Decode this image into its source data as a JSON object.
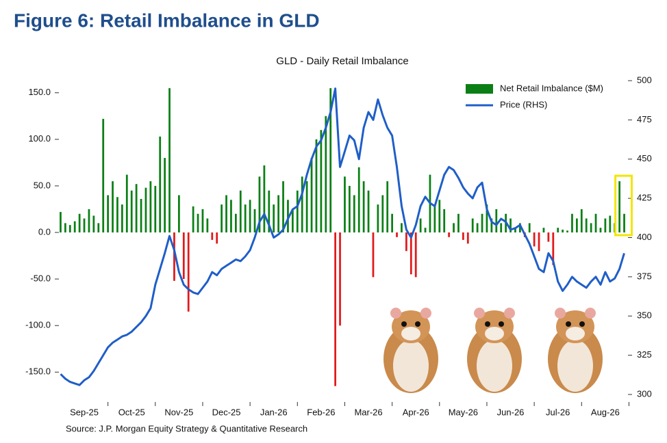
{
  "title": "Figure 6: Retail Imbalance in GLD",
  "source": "Source: J.P. Morgan Equity Strategy & Quantitative Research",
  "chart_data": {
    "type": "bar_line",
    "title": "GLD - Daily Retail Imbalance",
    "xlim": [
      -0.5,
      119.5
    ],
    "xticks": [
      {
        "value": 5,
        "label": "Sep-25"
      },
      {
        "value": 15,
        "label": "Oct-25"
      },
      {
        "value": 25,
        "label": "Nov-25"
      },
      {
        "value": 35,
        "label": "Dec-25"
      },
      {
        "value": 45,
        "label": "Jan-26"
      },
      {
        "value": 55,
        "label": "Feb-26"
      },
      {
        "value": 65,
        "label": "Mar-26"
      },
      {
        "value": 75,
        "label": "Apr-26"
      },
      {
        "value": 85,
        "label": "May-26"
      },
      {
        "value": 95,
        "label": "Jun-26"
      },
      {
        "value": 105,
        "label": "Jul-26"
      },
      {
        "value": 115,
        "label": "Aug-26"
      }
    ],
    "ylim": [
      -174,
      163
    ],
    "yticks": [
      {
        "value": 150,
        "label": "150.0"
      },
      {
        "value": 100,
        "label": "100.0"
      },
      {
        "value": 50,
        "label": "50.0"
      },
      {
        "value": 0,
        "label": "0.0"
      },
      {
        "value": -50,
        "label": "-50.0"
      },
      {
        "value": -100,
        "label": "-100.0"
      },
      {
        "value": -150,
        "label": "-150.0"
      }
    ],
    "y2lim": [
      300,
      500
    ],
    "y2ticks": [
      300,
      325,
      350,
      375,
      400,
      425,
      450,
      475,
      500
    ],
    "highlight_color": "#f2e600",
    "series": [
      {
        "name": "Net Retail Imbalance ($M)",
        "type": "bar",
        "color": "#0b7f16",
        "negative_color": "#e2191b",
        "values": [
          22,
          10,
          8,
          12,
          20,
          15,
          25,
          18,
          10,
          122,
          40,
          55,
          38,
          30,
          62,
          45,
          52,
          36,
          48,
          55,
          50,
          103,
          80,
          155,
          -52,
          40,
          -50,
          -85,
          28,
          20,
          25,
          15,
          -8,
          -12,
          30,
          40,
          35,
          20,
          45,
          30,
          35,
          25,
          60,
          72,
          45,
          30,
          40,
          55,
          35,
          25,
          45,
          60,
          55,
          80,
          100,
          110,
          125,
          155,
          -165,
          -100,
          60,
          50,
          40,
          70,
          55,
          45,
          -48,
          30,
          40,
          55,
          20,
          -5,
          10,
          -20,
          -45,
          -48,
          15,
          5,
          62,
          30,
          35,
          25,
          -5,
          10,
          20,
          -8,
          -12,
          15,
          10,
          20,
          30,
          15,
          25,
          10,
          20,
          15,
          5,
          10,
          -5,
          10,
          -15,
          -20,
          5,
          -10,
          -35,
          5,
          3,
          2,
          20,
          15,
          25,
          15,
          10,
          20,
          5,
          15,
          18,
          10,
          55,
          20
        ]
      },
      {
        "name": "Price (RHS)",
        "type": "line",
        "axis": "y2",
        "color": "#1f5ec8",
        "values": [
          313,
          310,
          308,
          307,
          306,
          309,
          311,
          315,
          320,
          325,
          330,
          333,
          335,
          337,
          338,
          340,
          343,
          346,
          350,
          355,
          370,
          380,
          390,
          401,
          392,
          378,
          370,
          367,
          365,
          364,
          368,
          372,
          378,
          376,
          380,
          382,
          384,
          386,
          385,
          388,
          392,
          400,
          410,
          415,
          408,
          400,
          402,
          405,
          412,
          418,
          420,
          428,
          440,
          450,
          458,
          462,
          470,
          480,
          495,
          445,
          455,
          465,
          462,
          450,
          470,
          480,
          475,
          488,
          478,
          470,
          465,
          445,
          420,
          405,
          400,
          408,
          420,
          426,
          422,
          420,
          430,
          440,
          445,
          443,
          438,
          432,
          428,
          425,
          432,
          435,
          418,
          410,
          408,
          412,
          410,
          405,
          406,
          408,
          402,
          396,
          388,
          380,
          378,
          390,
          385,
          372,
          366,
          370,
          375,
          372,
          370,
          368,
          372,
          375,
          370,
          378,
          372,
          374,
          380,
          390
        ]
      }
    ]
  }
}
